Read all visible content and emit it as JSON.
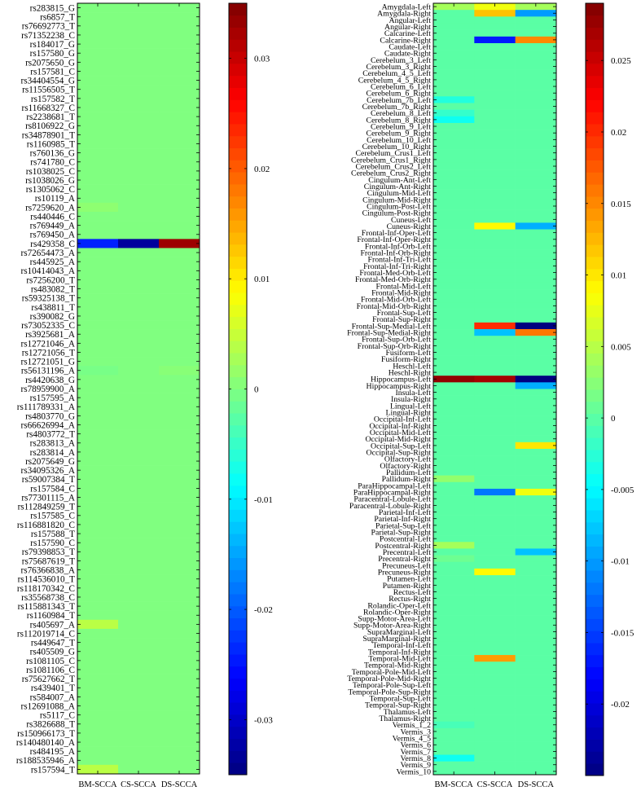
{
  "chart_data": [
    {
      "type": "heatmap",
      "columns": [
        "BM-SCCA",
        "CS-SCCA",
        "DS-SCCA"
      ],
      "rows": [
        "rs283815_G",
        "rs6857_T",
        "rs76692773_T",
        "rs71352238_C",
        "rs184017_G",
        "rs157580_G",
        "rs2075650_G",
        "rs157581_C",
        "rs34404554_G",
        "rs11556505_T",
        "rs157582_T",
        "rs11668327_C",
        "rs2238681_T",
        "rs8106922_G",
        "rs34878901_T",
        "rs1160985_T",
        "rs760136_G",
        "rs741780_C",
        "rs1038025_C",
        "rs1038026_G",
        "rs1305062_C",
        "rs10119_A",
        "rs7259620_A",
        "rs440446_C",
        "rs769449_A",
        "rs769450_A",
        "rs429358_C",
        "rs72654473_A",
        "rs445925_A",
        "rs10414043_A",
        "rs7256200_T",
        "rs483082_T",
        "rs59325138_T",
        "rs438811_T",
        "rs390082_G",
        "rs73052335_C",
        "rs3925681_A",
        "rs12721046_A",
        "rs12721056_T",
        "rs12721051_G",
        "rs56131196_A",
        "rs4420638_G",
        "rs78959900_A",
        "rs157595_A",
        "rs111789331_A",
        "rs4803770_G",
        "rs66626994_A",
        "rs4803772_T",
        "rs283813_A",
        "rs283814_A",
        "rs2075649_G",
        "rs34095326_A",
        "rs59007384_T",
        "rs157584_C",
        "rs77301115_A",
        "rs112849259_T",
        "rs157585_C",
        "rs116881820_C",
        "rs157588_T",
        "rs157590_C",
        "rs79398853_T",
        "rs75687619_T",
        "rs76366838_A",
        "rs114536010_T",
        "rs118170342_C",
        "rs35568738_C",
        "rs115881343_T",
        "rs1160984_T",
        "rs405697_A",
        "rs112019714_C",
        "rs449647_T",
        "rs405509_G",
        "rs1081105_C",
        "rs1081106_C",
        "rs75627662_T",
        "rs439401_T",
        "rs584007_A",
        "rs12691088_A",
        "rs5117_C",
        "rs3826688_T",
        "rs150966173_T",
        "rs140480140_A",
        "rs484195_A",
        "rs188535946_A",
        "rs157594_T"
      ],
      "cells": [
        {
          "row": "rs429358_C",
          "values": [
            -0.024,
            -0.033,
            0.033
          ]
        },
        {
          "row": "rs405697_A",
          "values": [
            0.004,
            0,
            0
          ]
        },
        {
          "row": "rs157594_T",
          "values": [
            0.004,
            0,
            0
          ]
        },
        {
          "row": "rs7259620_A",
          "values": [
            0.001,
            0,
            0
          ]
        },
        {
          "row": "rs56131196_A",
          "values": [
            -0.0005,
            0,
            0.0006
          ]
        }
      ],
      "colorbar": {
        "min": -0.035,
        "max": 0.035,
        "ticks": [
          "-0.03",
          "-0.02",
          "-0.01",
          "0",
          "0.01",
          "0.02",
          "0.03"
        ]
      }
    },
    {
      "type": "heatmap",
      "columns": [
        "BM-SCCA",
        "CS-SCCA",
        "DS-SCCA"
      ],
      "rows": [
        "Amygdala-Left",
        "Amygdala-Right",
        "Angular-Left",
        "Angular-Right",
        "Calcarine-Left",
        "Calcarine-Right",
        "Caudate-Left",
        "Caudate-Right",
        "Cerebelum_3_Left",
        "Cerebelum_3_Right",
        "Cerebelum_4_5_Left",
        "Cerebelum_4_5_Right",
        "Cerebelum_6_Left",
        "Cerebelum_6_Right",
        "Cerebelum_7b_Left",
        "Cerebelum_7b_Right",
        "Cerebelum_8_Left",
        "Cerebelum_8_Right",
        "Cerebelum_9_Left",
        "Cerebelum_9_Right",
        "Cerebelum_10_Left",
        "Cerebelum_10_Right",
        "Cerebelum_Crus1_Left",
        "Cerebelum_Crus1_Right",
        "Cerebelum_Crus2_Left",
        "Cerebelum_Crus2_Right",
        "Cingulum-Ant-Left",
        "Cingulum-Ant-Right",
        "Cingulum-Mid-Left",
        "Cingulum-Mid-Right",
        "Cingulum-Post-Left",
        "Cingulum-Post-Right",
        "Cuneus-Left",
        "Cuneus-Right",
        "Frontal-Inf-Oper-Left",
        "Frontal-Inf-Oper-Right",
        "Frontal-Inf-Orb-Left",
        "Frontal-Inf-Orb-Right",
        "Frontal-Inf-Tri-Left",
        "Frontal-Inf-Tri-Right",
        "Frontal-Med-Orb-Left",
        "Frontal-Med-Orb-Right",
        "Frontal-Mid-Left",
        "Frontal-Mid-Right",
        "Frontal-Mid-Orb-Left",
        "Frontal-Mid-Orb-Right",
        "Frontal-Sup-Left",
        "Frontal-Sup-Right",
        "Frontal-Sup-Medial-Left",
        "Frontal-Sup-Medial-Right",
        "Frontal-Sup-Orb-Left",
        "Frontal-Sup-Orb-Right",
        "Fusiform-Left",
        "Fusiform-Right",
        "Heschl-Left",
        "Heschl-Right",
        "Hippocampus-Left",
        "Hippocampus-Right",
        "Insula-Left",
        "Insula-Right",
        "Lingual-Left",
        "Lingual-Right",
        "Occipital-Inf-Left",
        "Occipital-Inf-Right",
        "Occipital-Mid-Left",
        "Occipital-Mid-Right",
        "Occipital-Sup-Left",
        "Occipital-Sup-Right",
        "Olfactory-Left",
        "Olfactory-Right",
        "Pallidum-Left",
        "Pallidum-Right",
        "ParaHippocampal-Left",
        "ParaHippocampal-Right",
        "Paracentral-Lobule-Left",
        "Paracentral-Lobule-Right",
        "Parietal-Inf-Left",
        "Parietal-Inf-Right",
        "Parietal-Sup-Left",
        "Parietal-Sup-Right",
        "Postcentral-Left",
        "Postcentral-Right",
        "Precentral-Left",
        "Precentral-Right",
        "Precuneus-Left",
        "Precuneus-Right",
        "Putamen-Left",
        "Putamen-Right",
        "Rectus-Left",
        "Rectus-Right",
        "Rolandic-Oper-Left",
        "Rolandic-Oper-Right",
        "Supp-Motor-Area-Left",
        "Supp-Motor-Area-Right",
        "SupraMarginal-Left",
        "SupraMarginal-Right",
        "Temporal-Inf-Left",
        "Temporal-Inf-Right",
        "Temporal-Mid-Left",
        "Temporal-Mid-Right",
        "Temporal-Pole-Mid-Left",
        "Temporal-Pole-Mid-Right",
        "Temporal-Pole-Sup-Left",
        "Temporal-Pole-Sup-Right",
        "Temporal-Sup-Left",
        "Temporal-Sup-Right",
        "Thalamus-Left",
        "Thalamus-Right",
        "Vermis_1_2",
        "Vermis_3",
        "Vermis_4_5",
        "Vermis_6",
        "Vermis_7",
        "Vermis_8",
        "Vermis_9",
        "Vermis_10"
      ],
      "cells": [
        {
          "row": "Amygdala-Left",
          "values": [
            0.004,
            0.008,
            0.004
          ]
        },
        {
          "row": "Amygdala-Right",
          "values": [
            0,
            0.012,
            -0.01
          ]
        },
        {
          "row": "Calcarine-Right",
          "values": [
            0,
            -0.017,
            0.015
          ]
        },
        {
          "row": "Cerebelum_7b_Left",
          "values": [
            -0.003,
            0,
            0
          ]
        },
        {
          "row": "Cerebelum_8_Left",
          "values": [
            -0.002,
            0,
            0
          ]
        },
        {
          "row": "Cerebelum_8_Right",
          "values": [
            -0.004,
            0,
            0
          ]
        },
        {
          "row": "Cuneus-Right",
          "values": [
            0,
            0.009,
            -0.009
          ]
        },
        {
          "row": "Frontal-Sup-Medial-Left",
          "values": [
            0,
            0.02,
            -0.025
          ]
        },
        {
          "row": "Frontal-Sup-Medial-Right",
          "values": [
            0,
            -0.008,
            0.016
          ]
        },
        {
          "row": "Hippocampus-Left",
          "values": [
            0.028,
            0.027,
            -0.025
          ]
        },
        {
          "row": "Hippocampus-Right",
          "values": [
            0,
            0,
            -0.009
          ]
        },
        {
          "row": "Occipital-Sup-Left",
          "values": [
            0,
            0,
            0.01
          ]
        },
        {
          "row": "Pallidum-Right",
          "values": [
            0.003,
            0,
            0
          ]
        },
        {
          "row": "ParaHippocampal-Right",
          "values": [
            0,
            -0.012,
            0.008
          ]
        },
        {
          "row": "Postcentral-Right",
          "values": [
            0.004,
            0,
            0
          ]
        },
        {
          "row": "Precentral-Left",
          "values": [
            0,
            0,
            -0.008
          ]
        },
        {
          "row": "Precentral-Right",
          "values": [
            0.001,
            0,
            0
          ]
        },
        {
          "row": "Precuneus-Right",
          "values": [
            0,
            0.009,
            0
          ]
        },
        {
          "row": "Temporal-Mid-Left",
          "values": [
            0,
            0.014,
            0
          ]
        },
        {
          "row": "Vermis_1_2",
          "values": [
            -0.001,
            0,
            0
          ]
        },
        {
          "row": "Vermis_8",
          "values": [
            -0.004,
            0,
            0
          ]
        }
      ],
      "colorbar": {
        "min": -0.025,
        "max": 0.029,
        "ticks": [
          "-0.02",
          "-0.015",
          "-0.01",
          "-0.005",
          "0",
          "0.005",
          "0.01",
          "0.015",
          "0.02",
          "0.025"
        ]
      }
    }
  ]
}
